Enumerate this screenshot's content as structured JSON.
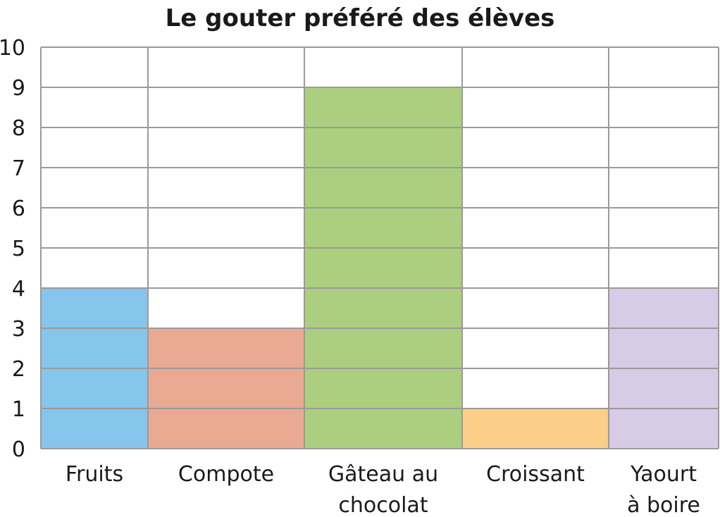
{
  "chart_data": {
    "type": "bar",
    "title": "Le gouter préféré des élèves",
    "xlabel": "",
    "ylabel": "",
    "ylim": [
      0,
      10
    ],
    "y_ticks": [
      0,
      1,
      2,
      3,
      4,
      5,
      6,
      7,
      8,
      9,
      10
    ],
    "grid": true,
    "categories": [
      "Fruits",
      "Compote",
      "Gâteau au chocolat",
      "Croissant",
      "Yaourt à boire"
    ],
    "category_label_lines": [
      [
        "Fruits"
      ],
      [
        "Compote"
      ],
      [
        "Gâteau au",
        "chocolat"
      ],
      [
        "Croissant"
      ],
      [
        "Yaourt",
        "à boire"
      ]
    ],
    "values": [
      4,
      3,
      9,
      1,
      4
    ],
    "colors": [
      "#86c5ec",
      "#eaa993",
      "#abcf7f",
      "#fbcf88",
      "#d8cbe6"
    ],
    "column_weights": [
      152,
      222,
      224,
      208,
      156
    ]
  }
}
